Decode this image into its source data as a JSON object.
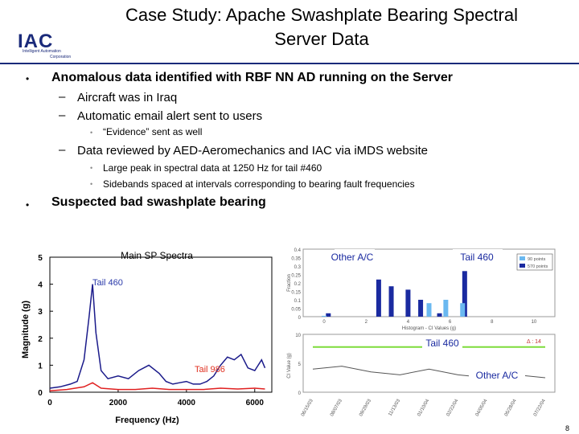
{
  "title_line1": "Case Study: Apache Swashplate Bearing Spectral",
  "title_line2": "Server Data",
  "logo": {
    "main": "IAC",
    "sub1": "Intelligent Automation",
    "sub2": "Corporation"
  },
  "bullets": {
    "b1": "Anomalous data identified with RBF NN AD running on the Server",
    "b1_sub1": "Aircraft was in Iraq",
    "b1_sub2": "Automatic email alert sent to users",
    "b1_sub2_sub1": "“Evidence” sent as well",
    "b1_sub3": "Data reviewed by AED-Aeromechanics and IAC via iMDS website",
    "b1_sub3_sub1": "Large peak in spectral data at 1250 Hz for tail #460",
    "b1_sub3_sub2": "Sidebands spaced at intervals corresponding to bearing fault frequencies",
    "b2": "Suspected bad swashplate bearing",
    "marker_main": "•",
    "marker_dash": "–",
    "marker_small": "•"
  },
  "colors": {
    "blue_series": "#1a1a8a",
    "red_series": "#e02020",
    "label_blue": "#2a3aaa",
    "label_red": "#e03020",
    "green_line": "#7ddc3a",
    "histo_dark": "#1a2aa0",
    "histo_light": "#6ab8f0"
  },
  "chart_data": [
    {
      "type": "line",
      "title": "Main SP Spectra",
      "xlabel": "Frequency (Hz)",
      "ylabel": "Magnitude (g)",
      "xlim": [
        0,
        6500
      ],
      "ylim": [
        0,
        5
      ],
      "xticks": [
        "0",
        "2000",
        "4000",
        "6000"
      ],
      "yticks": [
        "0",
        "1",
        "2",
        "3",
        "4",
        "5"
      ],
      "annotations": [
        "Tail 460",
        "Tail 986"
      ],
      "series": [
        {
          "name": "Tail 460",
          "x": [
            0,
            300,
            600,
            800,
            1000,
            1150,
            1250,
            1350,
            1500,
            1700,
            2000,
            2300,
            2600,
            2900,
            3200,
            3400,
            3600,
            3800,
            4000,
            4200,
            4400,
            4600,
            4800,
            5000,
            5200,
            5400,
            5600,
            5800,
            6000,
            6200,
            6300
          ],
          "values": [
            0.15,
            0.2,
            0.3,
            0.4,
            1.2,
            2.8,
            4.0,
            2.2,
            0.8,
            0.5,
            0.6,
            0.5,
            0.8,
            1.0,
            0.7,
            0.4,
            0.3,
            0.35,
            0.4,
            0.3,
            0.3,
            0.4,
            0.6,
            1.0,
            1.3,
            1.2,
            1.4,
            0.9,
            0.8,
            1.2,
            0.9
          ]
        },
        {
          "name": "Tail 986",
          "x": [
            0,
            500,
            1000,
            1250,
            1500,
            2000,
            2500,
            3000,
            3500,
            4000,
            4500,
            5000,
            5500,
            6000,
            6300
          ],
          "values": [
            0.05,
            0.1,
            0.2,
            0.35,
            0.15,
            0.1,
            0.1,
            0.15,
            0.1,
            0.1,
            0.1,
            0.15,
            0.12,
            0.15,
            0.12
          ]
        }
      ]
    },
    {
      "type": "bar",
      "xlabel": "Histogram - CI Values (g)",
      "ylabel": "Fraction",
      "xticks": [
        "0",
        "2",
        "4",
        "6",
        "8",
        "10"
      ],
      "yticks": [
        "0",
        "0.05",
        "0.1",
        "0.15",
        "0.2",
        "0.25",
        "0.3",
        "0.35",
        "0.4"
      ],
      "legend": [
        "90 points",
        "570 points"
      ],
      "annotations": [
        "Other A/C",
        "Tail 460"
      ],
      "series": [
        {
          "name": "570 points",
          "x": [
            0.2,
            2.6,
            3.2,
            4.0,
            4.6,
            5.5,
            6.7
          ],
          "values": [
            0.02,
            0.22,
            0.18,
            0.16,
            0.1,
            0.02,
            0.27
          ]
        },
        {
          "name": "90 points",
          "x": [
            0.0,
            5.0,
            5.8,
            6.6
          ],
          "values": [
            0.005,
            0.08,
            0.1,
            0.08
          ]
        }
      ]
    },
    {
      "type": "line",
      "ylabel": "CI Value (g)",
      "annotations": [
        "Tail 460",
        "Other A/C",
        "Δ : 14"
      ],
      "xticks": [
        "06/15/03",
        "08/07/03",
        "09/29/03",
        "11/13/03",
        "01/10/04",
        "02/22/04",
        "04/05/04",
        "05/28/04",
        "07/22/04"
      ],
      "yticks": [
        "0",
        "5",
        "10"
      ],
      "series": [
        {
          "name": "Tail 460",
          "values": [
            7.8,
            7.8,
            7.8,
            7.8,
            7.8,
            7.8,
            7.8,
            7.8,
            7.8
          ]
        },
        {
          "name": "Other A/C",
          "values": [
            4,
            4.5,
            3.5,
            3,
            4,
            3,
            2.5,
            3,
            2.5
          ]
        }
      ]
    }
  ],
  "page_number": "8"
}
